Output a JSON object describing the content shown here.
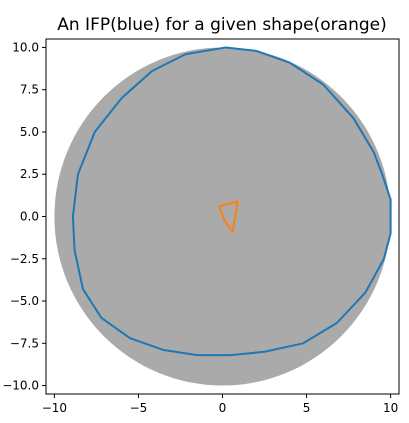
{
  "chart_data": {
    "type": "line",
    "title": "An IFP(blue) for a given shape(orange)",
    "xlabel": "",
    "ylabel": "",
    "xlim": [
      -10.5,
      10.5
    ],
    "ylim": [
      -10.5,
      10.5
    ],
    "xticks": [
      -10,
      -5,
      0,
      5,
      10
    ],
    "xtick_labels": [
      "−10",
      "−5",
      "0",
      "5",
      "10"
    ],
    "yticks": [
      10,
      7.5,
      5,
      2.5,
      0,
      -2.5,
      -5,
      -7.5,
      -10
    ],
    "ytick_labels": [
      "10.0",
      "7.5",
      "5.0",
      "2.5",
      "0.0",
      "−2.5",
      "−5.0",
      "−7.5",
      "−10.0"
    ],
    "grid": false,
    "background_disc": {
      "center": [
        0,
        0
      ],
      "radius": 10,
      "color": "#aaaaaa"
    },
    "series": [
      {
        "color": "#1f77b4",
        "closed": true,
        "x": [
          0.2,
          2.0,
          4.0,
          6.0,
          7.8,
          9.0,
          9.5,
          10.0,
          10.0,
          9.6,
          8.5,
          6.8,
          4.8,
          2.5,
          0.5,
          -1.5,
          -3.5,
          -5.5,
          -7.2,
          -8.3,
          -8.8,
          -8.9,
          -8.6,
          -7.6,
          -6.0,
          -4.2,
          -2.2,
          0.2
        ],
        "y": [
          10.0,
          9.8,
          9.1,
          7.8,
          5.8,
          3.8,
          2.5,
          1.0,
          -1.0,
          -2.5,
          -4.5,
          -6.3,
          -7.5,
          -8.0,
          -8.2,
          -8.2,
          -7.9,
          -7.2,
          -6.0,
          -4.3,
          -2.0,
          0.0,
          2.5,
          5.0,
          7.0,
          8.6,
          9.6,
          10.0
        ]
      },
      {
        "color": "#ff7f0e",
        "closed": true,
        "x": [
          -0.2,
          0.9,
          0.6,
          0.1,
          -0.2
        ],
        "y": [
          0.6,
          0.9,
          -0.9,
          -0.2,
          0.6
        ]
      }
    ]
  }
}
